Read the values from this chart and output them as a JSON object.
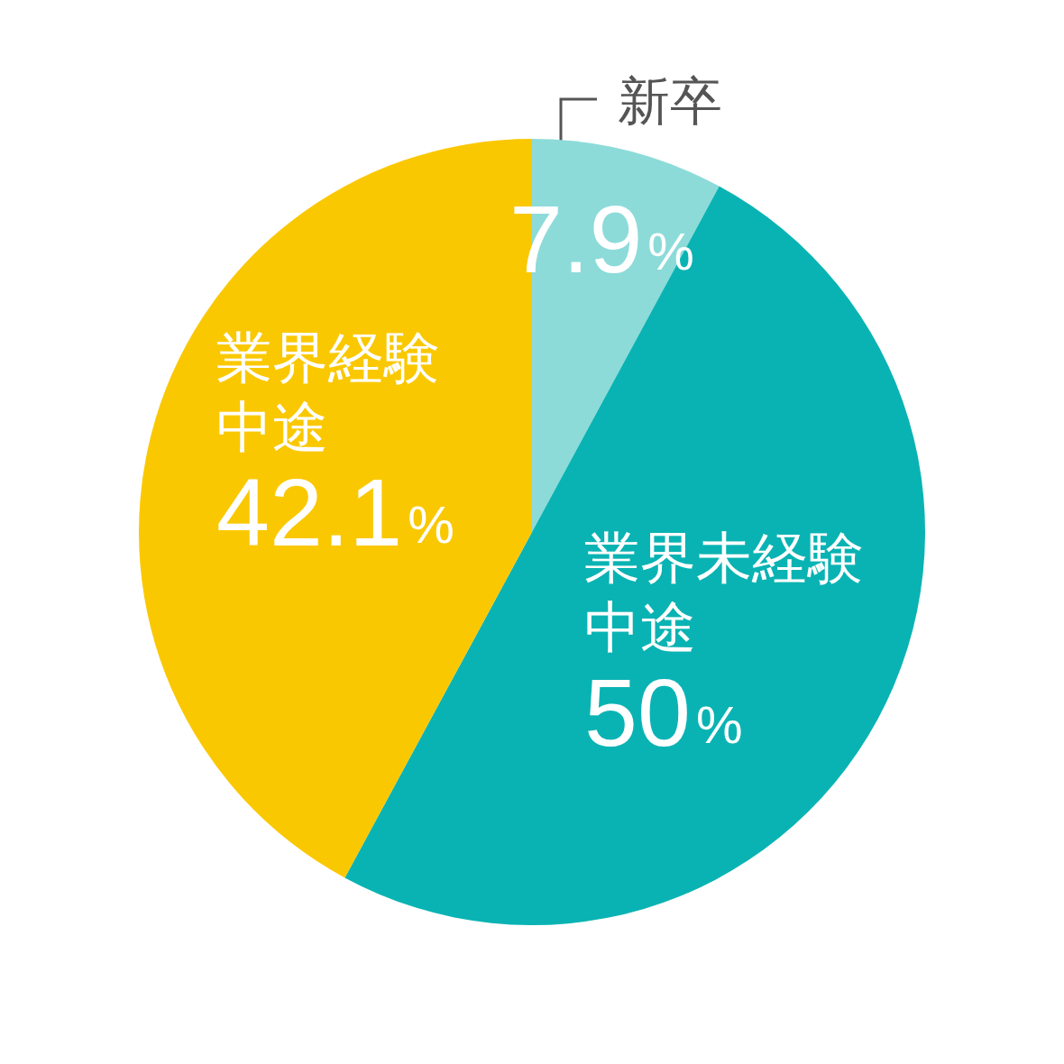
{
  "chart_data": {
    "type": "pie",
    "categories": [
      "新卒",
      "業界未経験中途",
      "業界経験中途"
    ],
    "values": [
      7.9,
      50,
      42.1
    ],
    "colors": [
      "#8cdbd9",
      "#0ab3b3",
      "#fac800"
    ],
    "value_labels": [
      "7.9%",
      "50%",
      "42.1%"
    ]
  }
}
